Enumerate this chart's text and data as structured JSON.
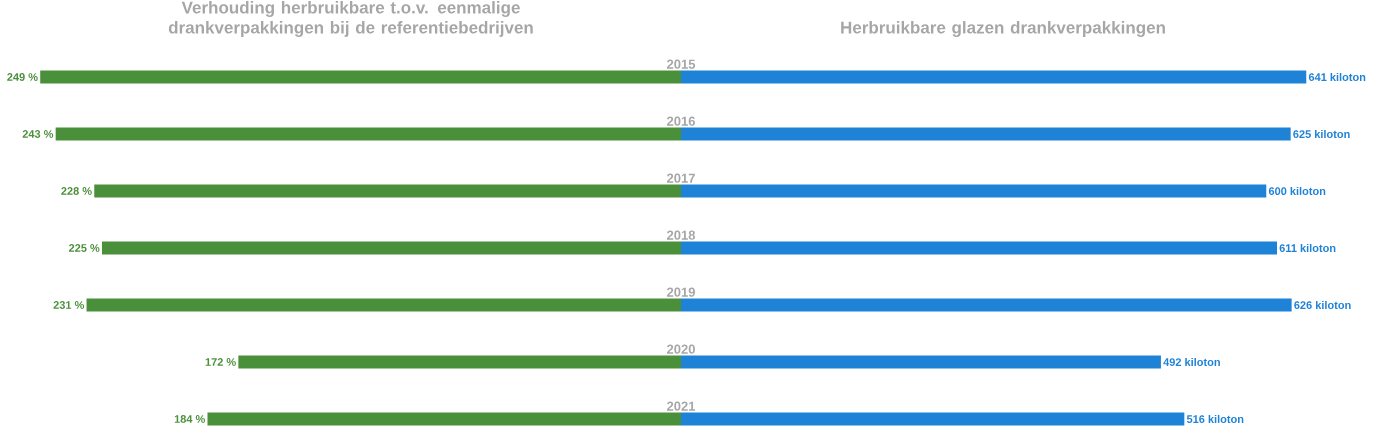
{
  "chart_data": [
    {
      "type": "bar",
      "orientation": "horizontal",
      "title": "Verhouding herbruikbare t.o.v. eenmalige drankverpakkingen bij de referentiebedrijven",
      "categories": [
        "2015",
        "2016",
        "2017",
        "2018",
        "2019",
        "2020",
        "2021"
      ],
      "values": [
        249,
        243,
        228,
        225,
        231,
        172,
        184
      ],
      "value_labels": [
        "249 %",
        "243 %",
        "228 %",
        "225 %",
        "231 %",
        "172 %",
        "184 %"
      ],
      "color": "#4a8f3a"
    },
    {
      "type": "bar",
      "orientation": "horizontal",
      "title": "Herbruikbare glazen drankverpakkingen",
      "categories": [
        null,
        null,
        null,
        null,
        null,
        null,
        null
      ],
      "values": [
        641,
        625,
        600,
        611,
        626,
        492,
        516
      ],
      "value_labels": [
        "641 kiloton",
        "625 kiloton",
        "600 kiloton",
        "611 kiloton",
        "626 kiloton",
        "492 kiloton",
        "516 kiloton"
      ],
      "color": "#1e82d6"
    }
  ]
}
